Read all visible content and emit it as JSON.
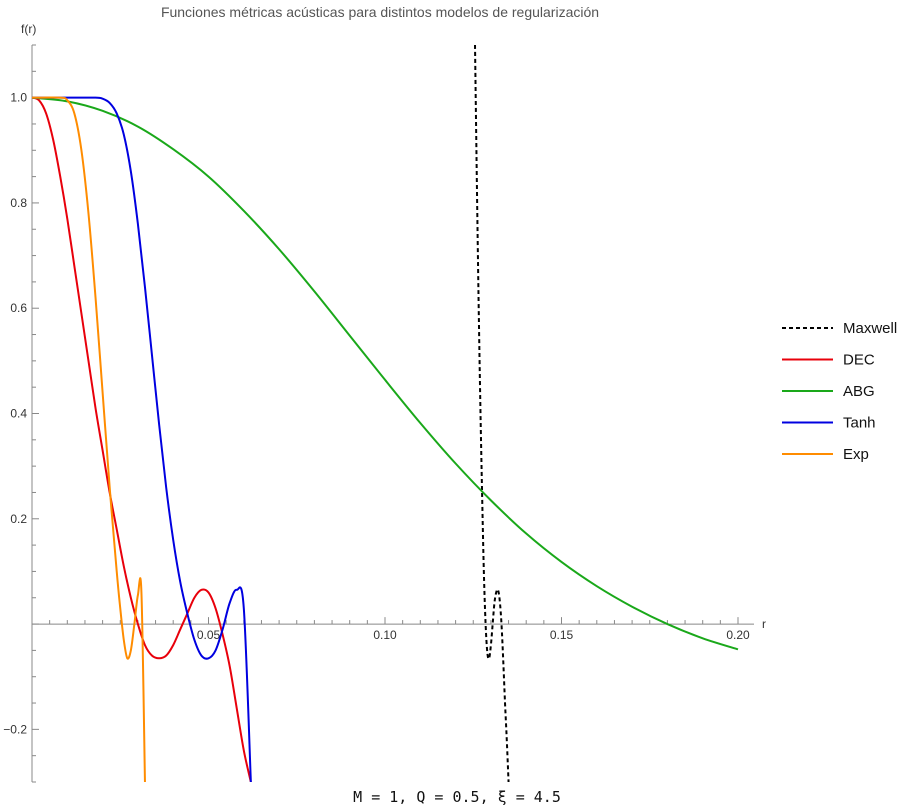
{
  "chart_data": {
    "type": "line",
    "title": "Funciones métricas acústicas para distintos modelos de regularización",
    "xlabel": "r",
    "ylabel": "f(r)",
    "xlim": [
      0,
      0.2
    ],
    "ylim": [
      -0.3,
      1.1
    ],
    "x_ticks": [
      {
        "value": 0.05,
        "label": "0.05"
      },
      {
        "value": 0.1,
        "label": "0.10"
      },
      {
        "value": 0.15,
        "label": "0.15"
      },
      {
        "value": 0.2,
        "label": "0.20"
      }
    ],
    "y_ticks": [
      {
        "value": -0.2,
        "label": "-0.2"
      },
      {
        "value": 0.2,
        "label": "0.2"
      },
      {
        "value": 0.4,
        "label": "0.4"
      },
      {
        "value": 0.6,
        "label": "0.6"
      },
      {
        "value": 0.8,
        "label": "0.8"
      },
      {
        "value": 1.0,
        "label": "1.0"
      }
    ],
    "legend_position": "right",
    "grid": false,
    "series": [
      {
        "name": "Maxwell",
        "color": "#000000",
        "dashed": true,
        "x": [
          0.1255,
          0.126,
          0.1265,
          0.127,
          0.1275,
          0.128,
          0.1285,
          0.129,
          0.1295,
          0.13,
          0.1305,
          0.131,
          0.1315,
          0.132,
          0.1325,
          0.133,
          0.1335,
          0.134,
          0.1345,
          0.135
        ],
        "y": [
          1.1,
          0.85,
          0.62,
          0.42,
          0.25,
          0.1,
          0.0,
          -0.055,
          -0.065,
          -0.04,
          0.0,
          0.04,
          0.06,
          0.065,
          0.045,
          0.0,
          -0.07,
          -0.15,
          -0.22,
          -0.3
        ]
      },
      {
        "name": "DEC",
        "color": "#e8000b",
        "x": [
          0.0,
          0.002,
          0.004,
          0.006,
          0.008,
          0.01,
          0.012,
          0.014,
          0.016,
          0.018,
          0.02,
          0.022,
          0.024,
          0.026,
          0.028,
          0.03,
          0.032,
          0.034,
          0.036,
          0.038,
          0.04,
          0.042,
          0.044,
          0.046,
          0.048,
          0.05,
          0.052,
          0.054,
          0.056,
          0.058,
          0.06,
          0.062
        ],
        "y": [
          1.0,
          0.995,
          0.97,
          0.92,
          0.85,
          0.77,
          0.68,
          0.59,
          0.5,
          0.41,
          0.33,
          0.25,
          0.18,
          0.11,
          0.05,
          0.0,
          -0.04,
          -0.06,
          -0.065,
          -0.06,
          -0.04,
          -0.01,
          0.02,
          0.05,
          0.065,
          0.06,
          0.03,
          -0.02,
          -0.08,
          -0.16,
          -0.24,
          -0.3
        ]
      },
      {
        "name": "ABG",
        "color": "#1aa81a",
        "x": [
          0.0,
          0.01,
          0.02,
          0.03,
          0.04,
          0.05,
          0.06,
          0.07,
          0.08,
          0.09,
          0.1,
          0.11,
          0.12,
          0.13,
          0.14,
          0.15,
          0.16,
          0.17,
          0.18,
          0.19,
          0.2
        ],
        "y": [
          1.0,
          0.993,
          0.975,
          0.945,
          0.902,
          0.85,
          0.785,
          0.712,
          0.632,
          0.548,
          0.464,
          0.382,
          0.305,
          0.235,
          0.172,
          0.118,
          0.072,
          0.033,
          0.0,
          -0.027,
          -0.048
        ]
      },
      {
        "name": "Tanh",
        "color": "#0000e0",
        "x": [
          0.0,
          0.01,
          0.018,
          0.02,
          0.022,
          0.024,
          0.026,
          0.028,
          0.03,
          0.032,
          0.034,
          0.036,
          0.038,
          0.04,
          0.042,
          0.044,
          0.046,
          0.048,
          0.05,
          0.052,
          0.054,
          0.056,
          0.058,
          0.06,
          0.062
        ],
        "y": [
          1.0,
          1.0,
          1.0,
          0.998,
          0.99,
          0.97,
          0.93,
          0.86,
          0.76,
          0.64,
          0.51,
          0.38,
          0.26,
          0.16,
          0.08,
          0.02,
          -0.03,
          -0.06,
          -0.065,
          -0.05,
          -0.01,
          0.04,
          0.065,
          0.03,
          -0.3
        ]
      },
      {
        "name": "Exp",
        "color": "#ff8c00",
        "x": [
          0.0,
          0.008,
          0.01,
          0.012,
          0.014,
          0.016,
          0.018,
          0.02,
          0.022,
          0.024,
          0.025,
          0.026,
          0.027,
          0.028,
          0.029,
          0.03,
          0.031,
          0.032
        ],
        "y": [
          1.0,
          1.0,
          0.995,
          0.97,
          0.9,
          0.78,
          0.62,
          0.44,
          0.26,
          0.1,
          0.03,
          -0.03,
          -0.065,
          -0.05,
          0.0,
          0.055,
          0.06,
          -0.3
        ]
      }
    ]
  },
  "caption": "M = 1, Q = 0.5, ξ = 4.5"
}
